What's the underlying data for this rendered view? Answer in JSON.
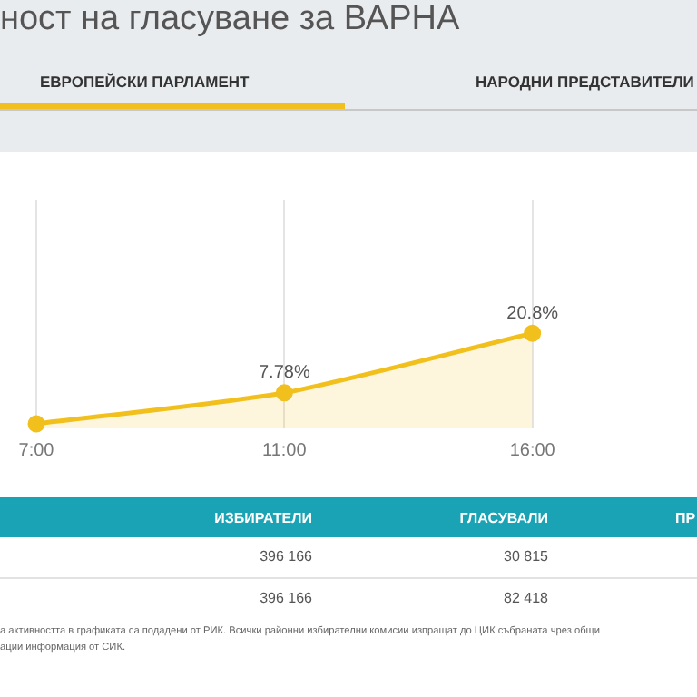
{
  "chart_data": [
    {
      "type": "area",
      "title": "ност на гласуване за ВАРНА",
      "annotations": [
        "ЕВРОПЕЙСКИ ПАРЛАМЕНТ",
        "НАРОДНИ ПРЕДСТАВИТЕЛИ"
      ],
      "categories": [
        "7:00",
        "11:00",
        "16:00",
        null
      ],
      "values": [
        1,
        7.78,
        20.8,
        null
      ],
      "value_labels": [
        null,
        "7.78%",
        "20.8%",
        null
      ],
      "color": "#f2c01d",
      "marker": "circle",
      "grid": "x",
      "legend": false,
      "tick_labels": "x"
    },
    {
      "type": "other",
      "annotations": [
        "ИЗБИРАТЕЛИ",
        "ГЛАСУВАЛИ",
        "ПР",
        "396 166",
        "30 815",
        "396 166",
        "82 418",
        "а активността в графиката са подадени от РИК. Всички районни избирателни комисии изпращат до ЦИК събраната чрез общи",
        "ации информация от СИК."
      ]
    }
  ]
}
